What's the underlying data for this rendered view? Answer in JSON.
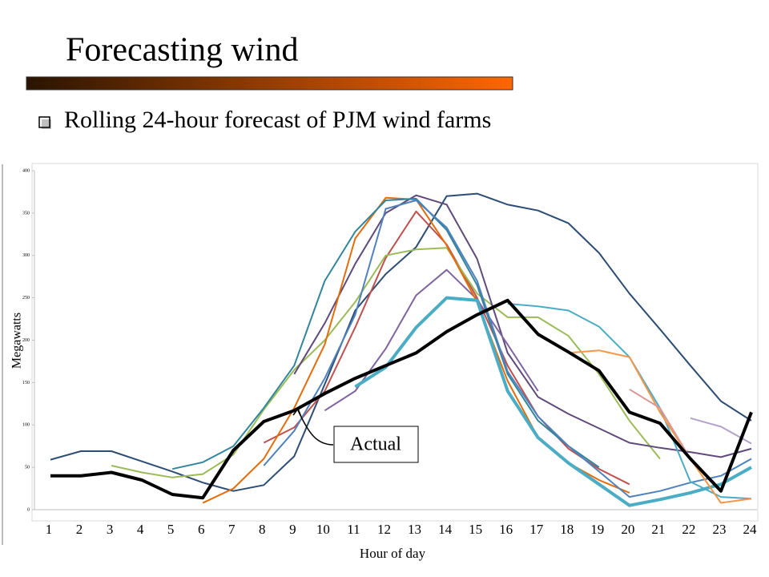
{
  "title": "Forecasting wind",
  "subtitle": "Rolling 24-hour forecast of PJM wind farms",
  "chart_data": {
    "type": "line",
    "x_label": "Hour of day",
    "y_label": "Megawatts",
    "annotation": "Actual",
    "categories": [
      1,
      2,
      3,
      4,
      5,
      6,
      7,
      8,
      9,
      10,
      11,
      12,
      13,
      14,
      15,
      16,
      17,
      18,
      19,
      20,
      21,
      22,
      23,
      24
    ],
    "ylim": [
      0,
      400
    ],
    "yticks": [
      0,
      50,
      100,
      150,
      200,
      250,
      300,
      350,
      400
    ],
    "grid": false,
    "series": [
      {
        "color": "#2c4d75",
        "width": 2,
        "values": [
          59,
          69,
          69,
          57,
          45,
          32,
          22,
          29,
          63,
          148,
          235,
          278,
          310,
          370,
          373,
          360,
          353,
          338,
          303,
          255,
          213,
          170,
          128,
          105
        ]
      },
      {
        "color": "#c0504d",
        "width": 2,
        "values": [
          null,
          null,
          null,
          null,
          null,
          null,
          null,
          79,
          97,
          140,
          215,
          297,
          352,
          313,
          250,
          170,
          110,
          72,
          48,
          30,
          null,
          null,
          null,
          null
        ]
      },
      {
        "color": "#9bbb59",
        "width": 2,
        "values": [
          null,
          null,
          52,
          44,
          38,
          42,
          65,
          118,
          165,
          200,
          245,
          300,
          307,
          309,
          255,
          227,
          227,
          205,
          160,
          105,
          60,
          null,
          null,
          null
        ]
      },
      {
        "color": "#604a7b",
        "width": 2,
        "values": [
          null,
          null,
          null,
          null,
          null,
          null,
          null,
          null,
          160,
          220,
          290,
          350,
          371,
          360,
          296,
          185,
          133,
          113,
          96,
          79,
          73,
          68,
          62,
          72
        ]
      },
      {
        "color": "#8064a2",
        "width": 2,
        "values": [
          null,
          null,
          null,
          null,
          null,
          null,
          null,
          null,
          null,
          117,
          140,
          190,
          253,
          283,
          248,
          195,
          140,
          null,
          null,
          null,
          null,
          null,
          null,
          null
        ]
      },
      {
        "color": "#e46c0a",
        "width": 2,
        "values": [
          null,
          null,
          null,
          null,
          null,
          8,
          25,
          60,
          120,
          195,
          320,
          368,
          366,
          312,
          245,
          152,
          85,
          55,
          35,
          20,
          null,
          null,
          null,
          null
        ]
      },
      {
        "color": "#31859c",
        "width": 2,
        "values": [
          null,
          null,
          null,
          null,
          48,
          56,
          75,
          120,
          170,
          270,
          328,
          365,
          367,
          330,
          265,
          160,
          105,
          75,
          50,
          null,
          null,
          null,
          null,
          null
        ]
      },
      {
        "color": "#4f81bd",
        "width": 2,
        "values": [
          null,
          null,
          null,
          null,
          null,
          null,
          null,
          52,
          93,
          155,
          230,
          355,
          365,
          333,
          270,
          163,
          110,
          75,
          45,
          15,
          22,
          32,
          40,
          60
        ]
      },
      {
        "color": "#4bacc6",
        "width": 4,
        "values": [
          null,
          null,
          null,
          null,
          null,
          null,
          null,
          null,
          null,
          null,
          145,
          168,
          215,
          250,
          247,
          140,
          85,
          55,
          30,
          5,
          12,
          20,
          30,
          50
        ]
      },
      {
        "color": "#4bacc6",
        "width": 2,
        "values": [
          null,
          null,
          null,
          null,
          null,
          null,
          null,
          null,
          null,
          null,
          null,
          null,
          null,
          null,
          null,
          243,
          240,
          235,
          216,
          180,
          120,
          33,
          15,
          13
        ]
      },
      {
        "color": "#f79646",
        "width": 2,
        "values": [
          null,
          null,
          null,
          null,
          null,
          null,
          null,
          null,
          null,
          null,
          null,
          null,
          null,
          null,
          null,
          null,
          null,
          185,
          188,
          180,
          115,
          60,
          8,
          13
        ]
      },
      {
        "color": "#d99694",
        "width": 2,
        "values": [
          null,
          null,
          null,
          null,
          null,
          null,
          null,
          null,
          null,
          null,
          null,
          null,
          null,
          null,
          null,
          null,
          null,
          null,
          null,
          142,
          120,
          60,
          null,
          null
        ]
      },
      {
        "color": "#b3a2c7",
        "width": 2,
        "values": [
          null,
          null,
          null,
          null,
          null,
          null,
          null,
          null,
          null,
          null,
          null,
          null,
          null,
          null,
          null,
          null,
          null,
          null,
          null,
          null,
          null,
          108,
          98,
          78
        ]
      },
      {
        "color": "#000000",
        "width": 4,
        "values": [
          40,
          40,
          44,
          35,
          18,
          14,
          70,
          104,
          117,
          137,
          155,
          170,
          185,
          210,
          230,
          247,
          207,
          186,
          164,
          115,
          102,
          60,
          22,
          115
        ]
      }
    ]
  }
}
